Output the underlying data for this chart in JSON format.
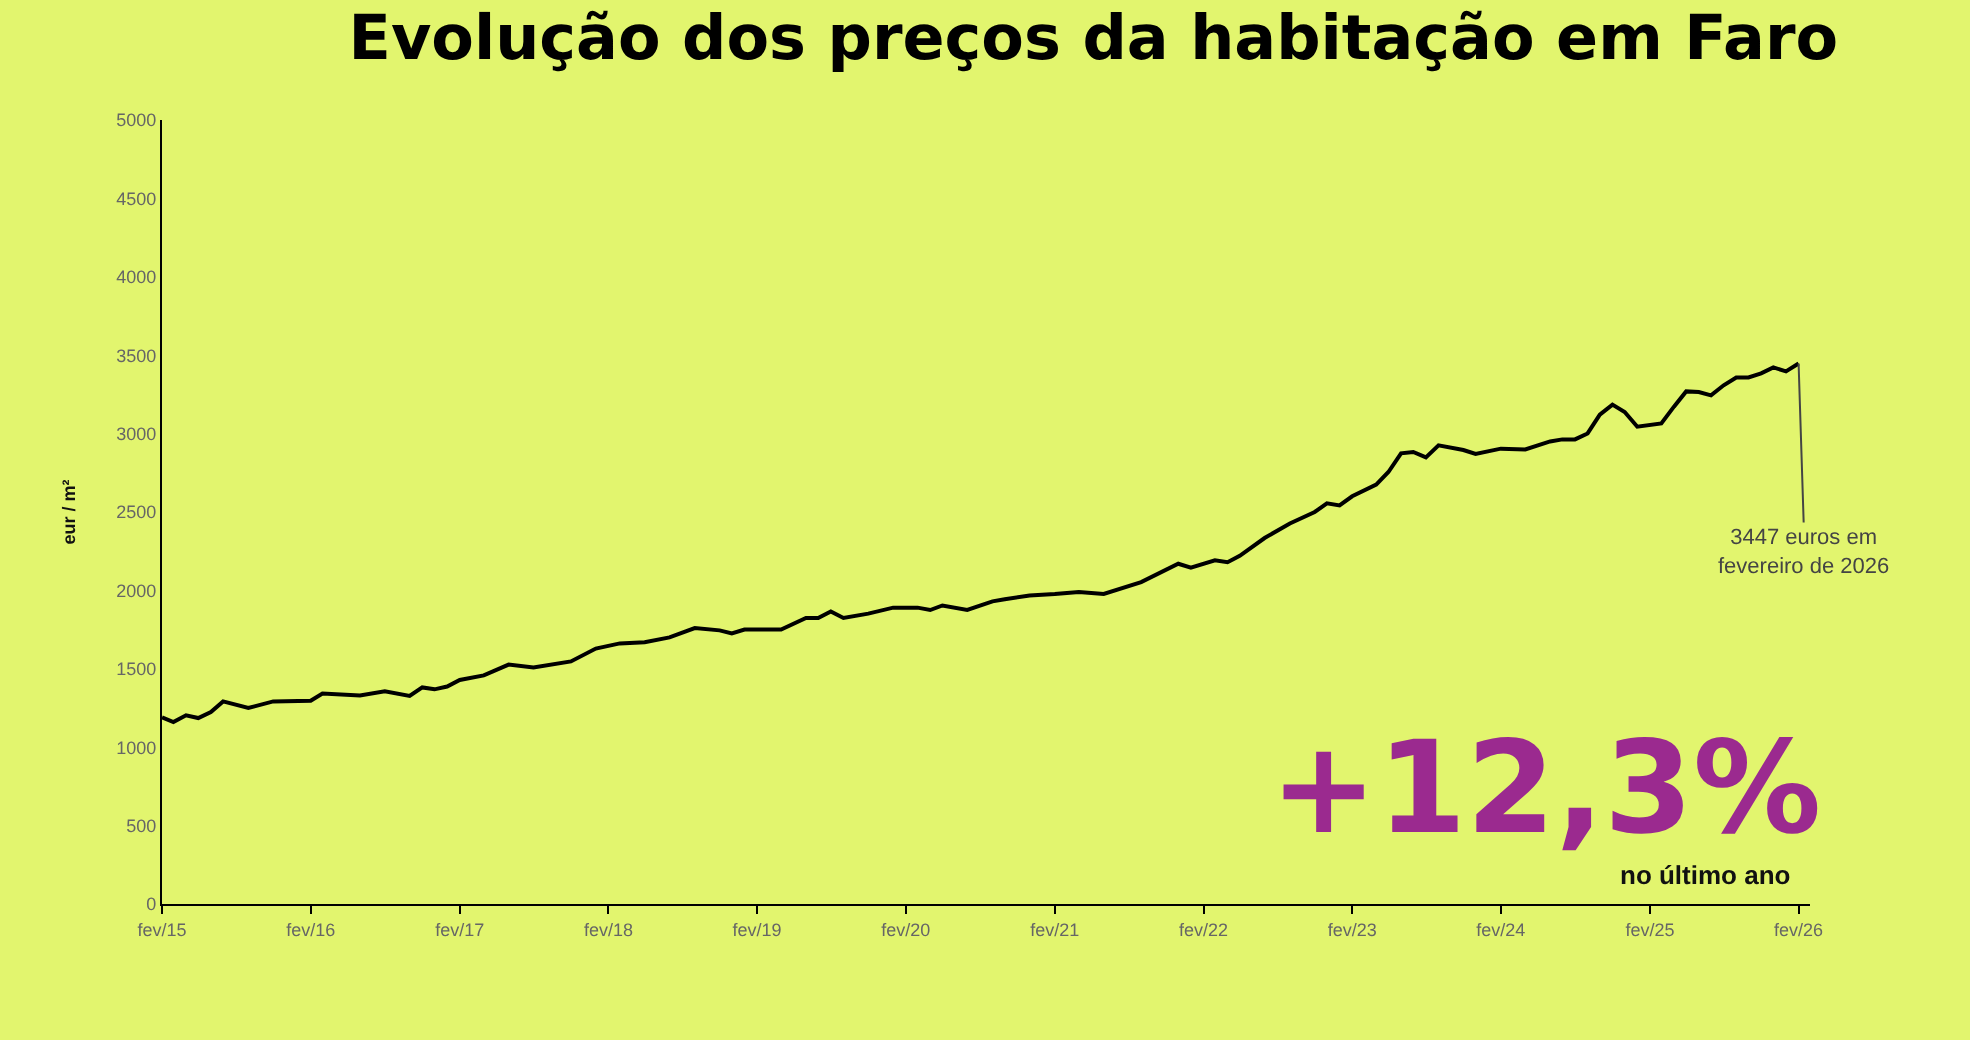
{
  "chart_data": {
    "type": "line",
    "title": "Evolução dos preços da habitação em Faro",
    "ylabel": "eur / m²",
    "x": [
      "2015-02",
      "2015-03",
      "2015-04",
      "2015-05",
      "2015-06",
      "2015-07",
      "2015-09",
      "2015-11",
      "2016-02",
      "2016-03",
      "2016-06",
      "2016-08",
      "2016-10",
      "2016-11",
      "2016-12",
      "2017-01",
      "2017-02",
      "2017-04",
      "2017-06",
      "2017-08",
      "2017-11",
      "2018-01",
      "2018-03",
      "2018-05",
      "2018-07",
      "2018-09",
      "2018-11",
      "2018-12",
      "2019-01",
      "2019-04",
      "2019-06",
      "2019-07",
      "2019-08",
      "2019-09",
      "2019-11",
      "2020-01",
      "2020-03",
      "2020-04",
      "2020-05",
      "2020-07",
      "2020-09",
      "2020-10",
      "2020-12",
      "2021-02",
      "2021-04",
      "2021-06",
      "2021-09",
      "2021-12",
      "2022-01",
      "2022-03",
      "2022-04",
      "2022-05",
      "2022-07",
      "2022-09",
      "2022-11",
      "2022-12",
      "2023-01",
      "2023-02",
      "2023-04",
      "2023-05",
      "2023-06",
      "2023-07",
      "2023-08",
      "2023-09",
      "2023-11",
      "2023-12",
      "2024-02",
      "2024-04",
      "2024-06",
      "2024-07",
      "2024-08",
      "2024-09",
      "2024-10",
      "2024-11",
      "2024-12",
      "2025-01",
      "2025-03",
      "2025-04",
      "2025-05",
      "2025-06",
      "2025-07",
      "2025-08",
      "2025-09",
      "2025-10",
      "2025-11",
      "2025-12",
      "2026-01",
      "2026-02"
    ],
    "series": [
      {
        "color": "#000000",
        "values": [
          1190,
          1160,
          1203,
          1186,
          1224,
          1292,
          1250,
          1292,
          1297,
          1343,
          1330,
          1356,
          1327,
          1381,
          1369,
          1387,
          1429,
          1458,
          1527,
          1509,
          1547,
          1629,
          1662,
          1670,
          1700,
          1760,
          1745,
          1726,
          1750,
          1750,
          1824,
          1824,
          1866,
          1824,
          1852,
          1890,
          1890,
          1875,
          1904,
          1875,
          1930,
          1943,
          1968,
          1977,
          1990,
          1977,
          2053,
          2170,
          2145,
          2192,
          2180,
          2220,
          2334,
          2427,
          2500,
          2555,
          2542,
          2600,
          2675,
          2755,
          2874,
          2883,
          2848,
          2925,
          2895,
          2870,
          2904,
          2899,
          2950,
          2963,
          2963,
          3001,
          3121,
          3185,
          3138,
          3044,
          3065,
          3172,
          3269,
          3265,
          3244,
          3308,
          3358,
          3358,
          3384,
          3422,
          3397,
          3447
        ]
      }
    ],
    "xlim": [
      "2015-02",
      "2026-03"
    ],
    "xticks": [
      {
        "value": "2015-02",
        "label": "fev/15"
      },
      {
        "value": "2016-02",
        "label": "fev/16"
      },
      {
        "value": "2017-02",
        "label": "fev/17"
      },
      {
        "value": "2018-02",
        "label": "fev/18"
      },
      {
        "value": "2019-02",
        "label": "fev/19"
      },
      {
        "value": "2020-02",
        "label": "fev/20"
      },
      {
        "value": "2021-02",
        "label": "fev/21"
      },
      {
        "value": "2022-02",
        "label": "fev/22"
      },
      {
        "value": "2023-02",
        "label": "fev/23"
      },
      {
        "value": "2024-02",
        "label": "fev/24"
      },
      {
        "value": "2025-02",
        "label": "fev/25"
      },
      {
        "value": "2026-02",
        "label": "fev/26"
      }
    ],
    "ylim": [
      0,
      5000
    ],
    "yticks": [
      0,
      500,
      1000,
      1500,
      2000,
      2500,
      3000,
      3500,
      4000,
      4500,
      5000
    ],
    "grid": false,
    "marker": "none",
    "line_style": "solid",
    "annotations": [
      {
        "text": "3447 euros em\nfevereiro de 2026",
        "x": "2026-02",
        "y": 3447
      },
      "+12,3%",
      "no último ano"
    ]
  }
}
